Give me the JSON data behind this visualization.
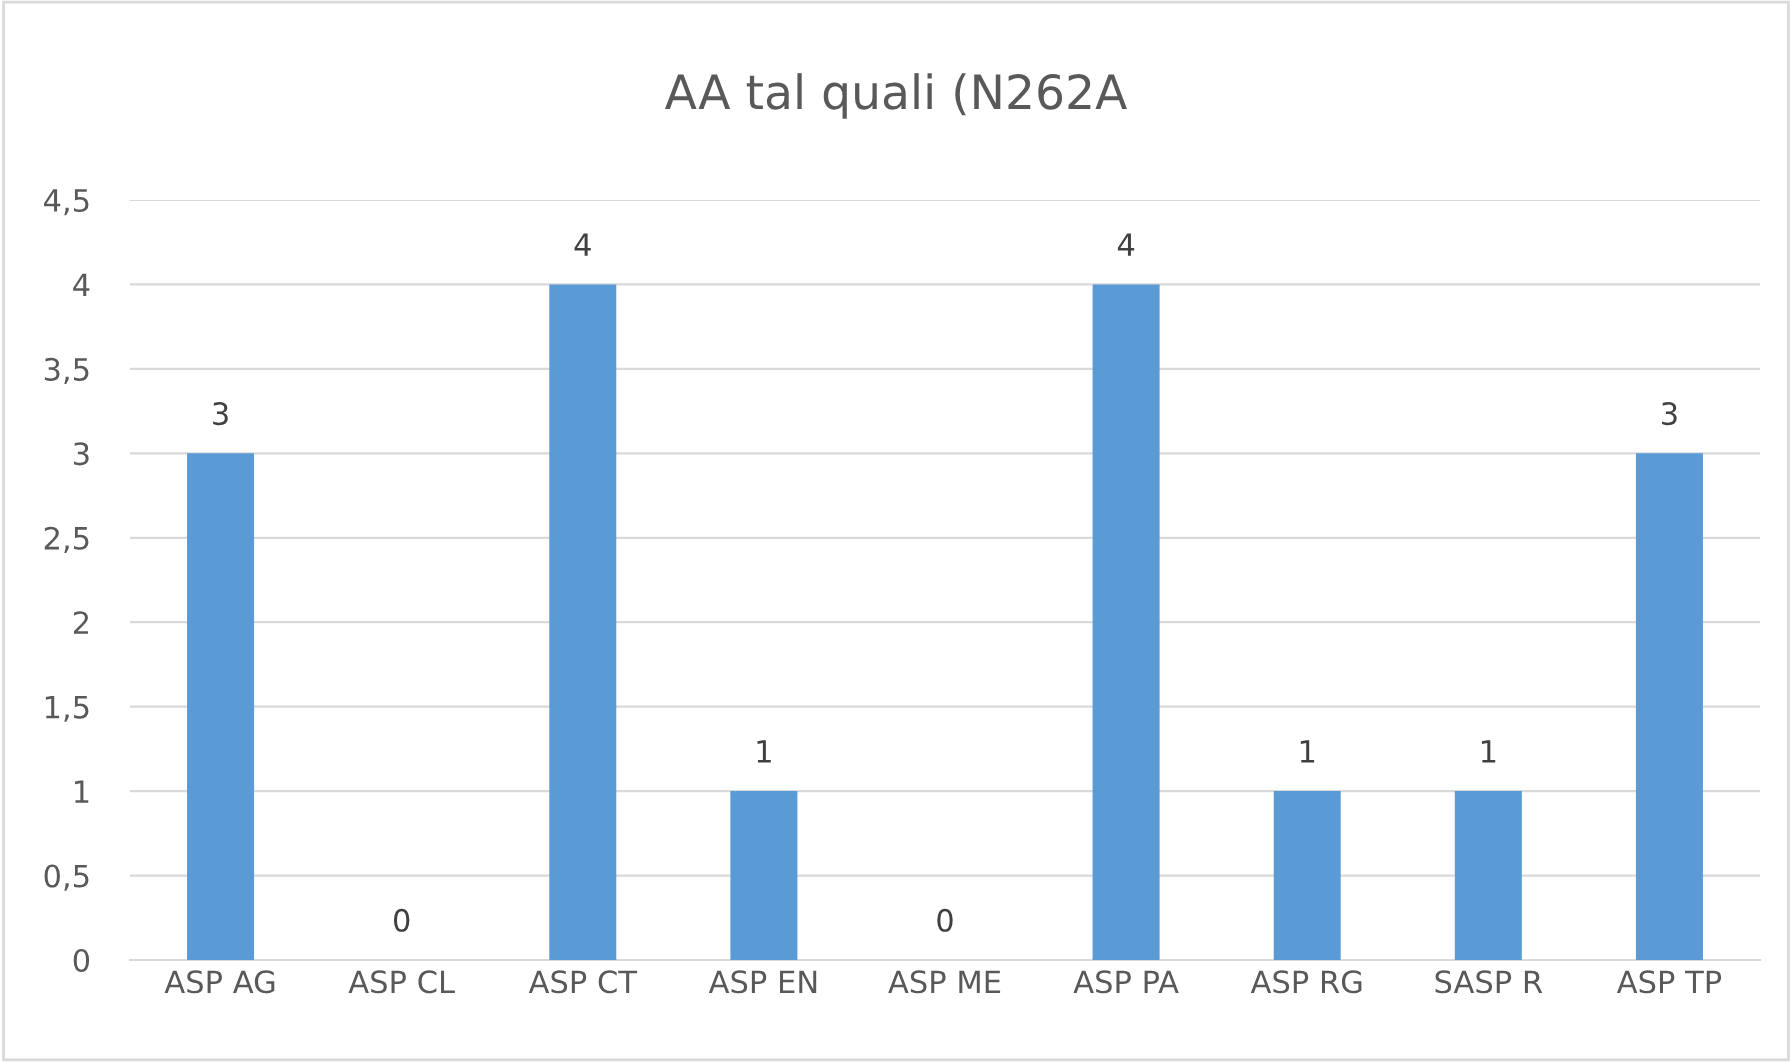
{
  "chart_data": {
    "type": "bar",
    "title": "AA tal quali (N262A",
    "categories": [
      "ASP AG",
      "ASP CL",
      "ASP CT",
      "ASP EN",
      "ASP ME",
      "ASP PA",
      "ASP RG",
      "SASP R",
      "ASP TP"
    ],
    "values": [
      3,
      0,
      4,
      1,
      0,
      4,
      1,
      1,
      3
    ],
    "color": "#5b9bd5",
    "ylim": [
      0,
      4.5
    ],
    "yticks": [
      0,
      {
        "value": 0.5,
        "label": "0,5"
      },
      1,
      {
        "value": 1.5,
        "label": "1,5"
      },
      2,
      {
        "value": 2.5,
        "label": "2,5"
      },
      3,
      {
        "value": 3.5,
        "label": "3,5"
      },
      4,
      {
        "value": 4.5,
        "label": "4,5"
      }
    ],
    "grid": "y",
    "data_labels": true
  }
}
